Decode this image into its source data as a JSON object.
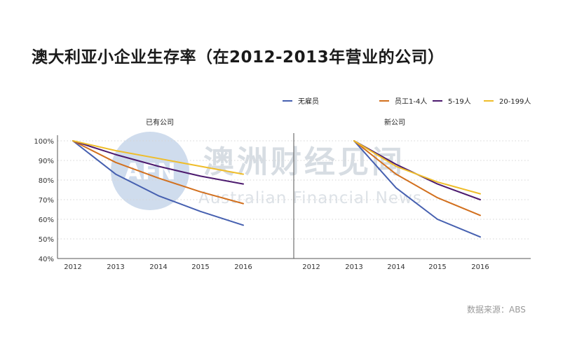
{
  "title": "澳大利亚小企业生存率（在2012-2013年营业的公司）",
  "source": "数据来源：ABS",
  "watermark": {
    "logo_text": "AFN",
    "cn": "澳洲财经见闻",
    "en": "Australian Financial News"
  },
  "colors": {
    "none": "#4660b0",
    "small": "#d2701e",
    "medium": "#4c1a6e",
    "large": "#efbd2a",
    "grid": "#d4d4d4",
    "axis": "#555555",
    "watermark_circle": "#cfdced"
  },
  "chart_data": {
    "type": "line",
    "title": "澳大利亚小企业生存率（在2012-2013年营业的公司）",
    "legend": [
      "无雇员",
      "员工1-4人",
      "5-19人",
      "20-199人"
    ],
    "legend_position": "top-right",
    "ylim": [
      40,
      100
    ],
    "yticks": [
      "40%",
      "50%",
      "60%",
      "70%",
      "80%",
      "90%",
      "100%"
    ],
    "ytick_values": [
      40,
      50,
      60,
      70,
      80,
      90,
      100
    ],
    "x_ticks": [
      "2012",
      "2013",
      "2014",
      "2015",
      "2016"
    ],
    "grid": "horizontal-dotted",
    "panels": [
      {
        "title": "已有公司",
        "x": [
          "2012",
          "2013",
          "2014",
          "2015",
          "2016"
        ],
        "series": [
          {
            "name": "无雇员",
            "key": "none",
            "values": [
              100,
              83,
              72,
              64,
              57
            ]
          },
          {
            "name": "员工1-4人",
            "key": "small",
            "values": [
              100,
              89,
              81,
              74,
              68
            ]
          },
          {
            "name": "5-19人",
            "key": "medium",
            "values": [
              100,
              93,
              87,
              82,
              78
            ]
          },
          {
            "name": "20-199人",
            "key": "large",
            "values": [
              100,
              95,
              91,
              87,
              83
            ]
          }
        ]
      },
      {
        "title": "新公司",
        "x": [
          "2013",
          "2014",
          "2015",
          "2016"
        ],
        "series": [
          {
            "name": "无雇员",
            "key": "none",
            "values": [
              100,
              76,
              60,
              51
            ]
          },
          {
            "name": "员工1-4人",
            "key": "small",
            "values": [
              100,
              83,
              71,
              62
            ]
          },
          {
            "name": "5-19人",
            "key": "medium",
            "values": [
              100,
              88,
              78,
              70
            ]
          },
          {
            "name": "20-199人",
            "key": "large",
            "values": [
              100,
              87,
              79,
              73
            ]
          }
        ]
      }
    ]
  }
}
